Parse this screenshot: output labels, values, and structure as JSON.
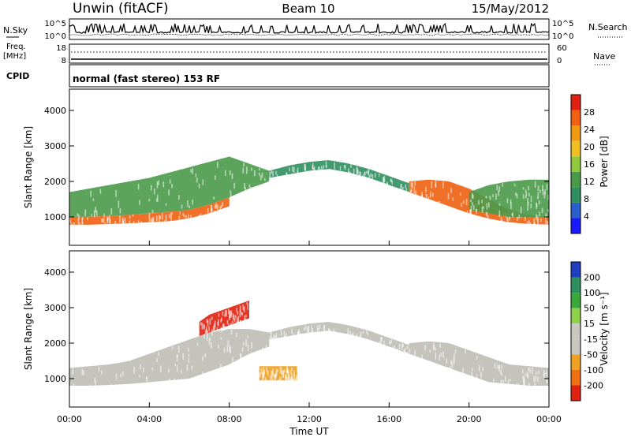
{
  "header": {
    "station": "Unwin (fitACF)",
    "beam": "Beam 10",
    "date": "15/May/2012",
    "mode": "normal (fast stereo) 153 RF"
  },
  "panels": {
    "noise": {
      "left_label": "N.Sky",
      "right_label": "N.Search",
      "left_ticks": [
        "10^5",
        "10^0"
      ],
      "right_ticks": [
        "10^5",
        "10^0"
      ]
    },
    "freq": {
      "left_label_1": "Freq.",
      "left_label_2": "[MHz]",
      "right_label": "Nave",
      "left_ticks": [
        "18",
        "8"
      ],
      "right_ticks": [
        "60",
        "0"
      ]
    },
    "cpid": {
      "label": "CPID"
    }
  },
  "colors": {
    "power_scale": [
      "#1a1aff",
      "#2b5fd0",
      "#2f8f5f",
      "#4a9a4a",
      "#8fc83c",
      "#f0c020",
      "#f09a10",
      "#f06010",
      "#e02010"
    ],
    "velocity_scale": [
      "#1f3fc0",
      "#2f8f5f",
      "#3aa83a",
      "#8fd04a",
      "#c8c8c0",
      "#c8c8c0",
      "#f0a020",
      "#f07010",
      "#e02010"
    ],
    "ground_scatter": "#bebeb6"
  },
  "chart_data": [
    {
      "type": "heatmap",
      "name": "power",
      "ylabel": "Slant Range [km]",
      "yticks": [
        1000,
        2000,
        3000,
        4000
      ],
      "ylim": [
        200,
        4600
      ],
      "xlim_hours": [
        0,
        24
      ],
      "colorbar": {
        "label": "Power [dB]",
        "ticks": [
          "4",
          "8",
          "12",
          "16",
          "20",
          "24",
          "28"
        ],
        "range": [
          0,
          32
        ]
      },
      "bands": [
        {
          "x": [
            0,
            1,
            2,
            3,
            4,
            5,
            6,
            7,
            8
          ],
          "lower": [
            780,
            780,
            800,
            820,
            850,
            880,
            960,
            1100,
            1300
          ],
          "upper": [
            1000,
            1010,
            1030,
            1060,
            1100,
            1150,
            1200,
            1350,
            1550
          ],
          "level": 28
        },
        {
          "x": [
            0,
            1,
            2,
            3,
            4,
            5,
            6,
            7,
            8,
            9,
            10
          ],
          "lower": [
            1000,
            1010,
            1030,
            1060,
            1100,
            1150,
            1200,
            1350,
            1550,
            1800,
            2000
          ],
          "upper": [
            1700,
            1800,
            1900,
            2000,
            2100,
            2250,
            2400,
            2550,
            2700,
            2500,
            2300
          ],
          "level": 14
        },
        {
          "x": [
            10,
            11,
            12,
            13,
            14,
            15,
            16,
            17
          ],
          "lower": [
            2100,
            2200,
            2300,
            2350,
            2250,
            2100,
            1900,
            1700
          ],
          "upper": [
            2300,
            2450,
            2550,
            2600,
            2500,
            2350,
            2150,
            1950
          ],
          "level": 10
        },
        {
          "x": [
            17,
            18,
            19,
            20,
            21,
            22,
            23,
            24
          ],
          "lower": [
            1700,
            1500,
            1300,
            1100,
            950,
            850,
            800,
            780
          ],
          "upper": [
            2000,
            2050,
            2000,
            1800,
            1500,
            1200,
            1050,
            1000
          ],
          "level": 26
        },
        {
          "x": [
            20,
            21,
            22,
            23,
            24
          ],
          "lower": [
            1200,
            1100,
            1000,
            1000,
            1000
          ],
          "upper": [
            1700,
            1900,
            2000,
            2050,
            2050
          ],
          "level": 14
        }
      ]
    },
    {
      "type": "heatmap",
      "name": "velocity",
      "ylabel": "Slant Range [km]",
      "xlabel": "Time UT",
      "yticks": [
        1000,
        2000,
        3000,
        4000
      ],
      "ylim": [
        200,
        4600
      ],
      "xlim_hours": [
        0,
        24
      ],
      "xtick_labels": [
        "00:00",
        "04:00",
        "08:00",
        "12:00",
        "16:00",
        "20:00",
        "00:00"
      ],
      "colorbar": {
        "label": "Velocity [m s⁻¹]",
        "ticks": [
          "200",
          "100",
          "50",
          "15",
          "-15",
          "-50",
          "-100",
          "-200"
        ]
      },
      "bands": [
        {
          "x": [
            0,
            1,
            2,
            3,
            4,
            5,
            6,
            7,
            8,
            9,
            10
          ],
          "lower": [
            800,
            800,
            820,
            850,
            900,
            950,
            1000,
            1200,
            1400,
            1700,
            1900
          ],
          "upper": [
            1300,
            1350,
            1400,
            1500,
            1700,
            1900,
            2100,
            2300,
            2400,
            2400,
            2300
          ],
          "level": 0
        },
        {
          "x": [
            10,
            11,
            12,
            13,
            14,
            15,
            16,
            17
          ],
          "lower": [
            2100,
            2200,
            2300,
            2350,
            2250,
            2100,
            1900,
            1700
          ],
          "upper": [
            2300,
            2450,
            2550,
            2600,
            2500,
            2350,
            2150,
            1950
          ],
          "level": 0
        },
        {
          "x": [
            17,
            18,
            19,
            20,
            21,
            22,
            23,
            24
          ],
          "lower": [
            1700,
            1500,
            1300,
            1100,
            900,
            850,
            800,
            800
          ],
          "upper": [
            2000,
            2050,
            2000,
            1800,
            1600,
            1400,
            1350,
            1300
          ],
          "level": 0
        },
        {
          "x": [
            9.5,
            10,
            10.5,
            11,
            11.4
          ],
          "lower": [
            950,
            950,
            950,
            950,
            950
          ],
          "upper": [
            1350,
            1350,
            1350,
            1350,
            1350
          ],
          "level": -60
        },
        {
          "x": [
            6.5,
            7,
            7.5,
            8,
            8.5,
            9
          ],
          "lower": [
            2200,
            2300,
            2400,
            2500,
            2600,
            2700
          ],
          "upper": [
            2600,
            2800,
            2900,
            3000,
            3100,
            3200
          ],
          "level": -220
        }
      ]
    }
  ]
}
